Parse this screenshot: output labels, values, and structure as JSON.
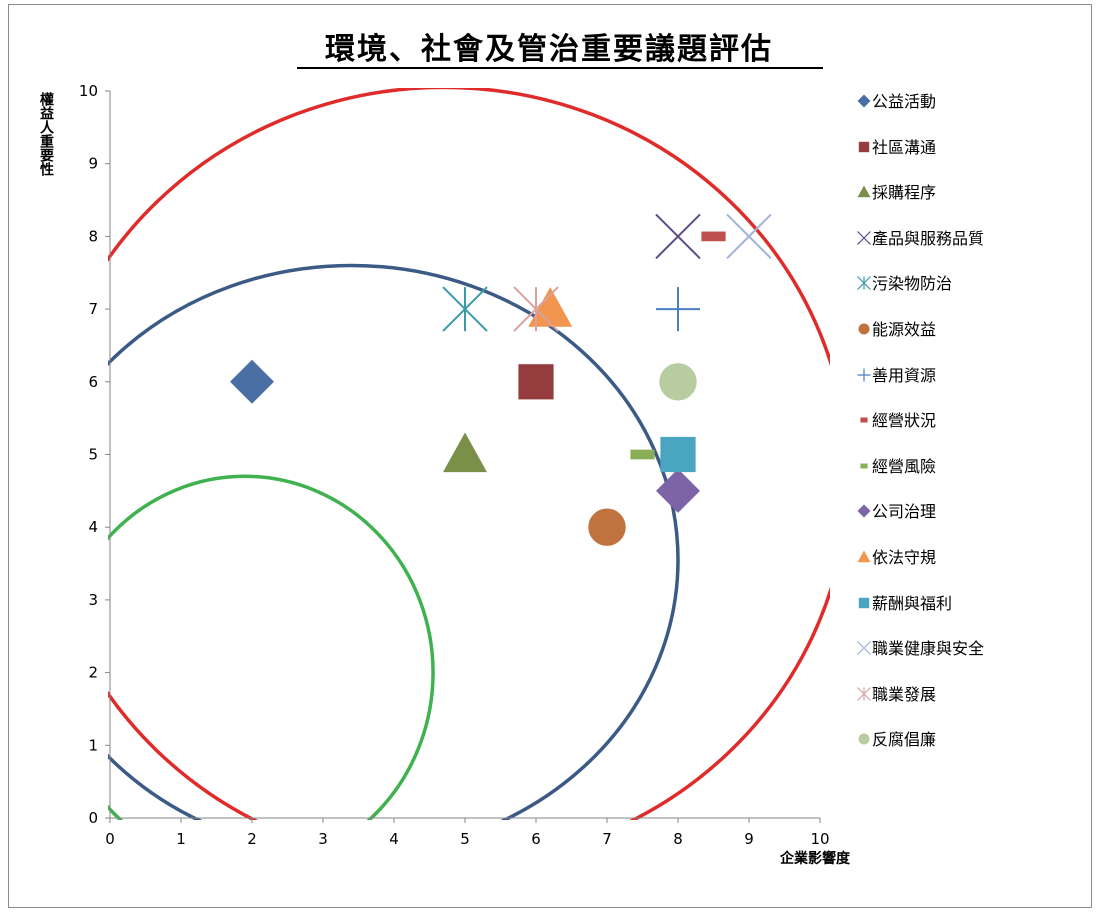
{
  "chart_data": {
    "type": "scatter",
    "title": "環境、社會及管治重要議題評估",
    "xlabel": "企業影響度",
    "ylabel": "權益人重要性",
    "xlim": [
      0,
      10
    ],
    "ylim": [
      0,
      10
    ],
    "xticks": [
      "0",
      "1",
      "2",
      "3",
      "4",
      "5",
      "6",
      "7",
      "8",
      "9",
      "10"
    ],
    "yticks": [
      "0",
      "1",
      "2",
      "3",
      "4",
      "5",
      "6",
      "7",
      "8",
      "9",
      "10"
    ],
    "grid": false,
    "legend_position": "right",
    "series": [
      {
        "name": "公益活動",
        "x": 2,
        "y": 6,
        "marker": "diamond",
        "color": "#4a6fa5"
      },
      {
        "name": "社區溝通",
        "x": 6,
        "y": 6,
        "marker": "square",
        "color": "#953d3e"
      },
      {
        "name": "採購程序",
        "x": 5,
        "y": 5,
        "marker": "triangle",
        "color": "#7a9049"
      },
      {
        "name": "產品與服務品質",
        "x": 8,
        "y": 8,
        "marker": "x",
        "color": "#5d4a8a"
      },
      {
        "name": "污染物防治",
        "x": 5,
        "y": 7,
        "marker": "asterisk",
        "color": "#3b9aaa"
      },
      {
        "name": "能源效益",
        "x": 7,
        "y": 4,
        "marker": "circle",
        "color": "#c0733e"
      },
      {
        "name": "善用資源",
        "x": 8,
        "y": 7,
        "marker": "plus",
        "color": "#4b7ec3"
      },
      {
        "name": "經營狀況",
        "x": 8.5,
        "y": 8,
        "marker": "dash",
        "color": "#c0504d"
      },
      {
        "name": "經營風險",
        "x": 7.5,
        "y": 5,
        "marker": "dash",
        "color": "#8aae56"
      },
      {
        "name": "公司治理",
        "x": 8,
        "y": 4.5,
        "marker": "diamond",
        "color": "#7c64a6"
      },
      {
        "name": "依法守規",
        "x": 6.2,
        "y": 7,
        "marker": "triangle",
        "color": "#f2954f"
      },
      {
        "name": "薪酬與福利",
        "x": 8,
        "y": 5,
        "marker": "square",
        "color": "#4aa5c0"
      },
      {
        "name": "職業健康與安全",
        "x": 9,
        "y": 8,
        "marker": "x",
        "color": "#9fb3dc"
      },
      {
        "name": "職業發展",
        "x": 6,
        "y": 7,
        "marker": "asterisk",
        "color": "#d9a1a0"
      },
      {
        "name": "反腐倡廉",
        "x": 8,
        "y": 6,
        "marker": "circle",
        "color": "#b7cca0"
      }
    ],
    "arcs": [
      {
        "center_x": 1.9,
        "center_y": 2,
        "radius_x": 2.65,
        "radius_y": 2.7,
        "color": "#3fb24f"
      },
      {
        "center_x": 3.4,
        "center_y": 3.55,
        "radius_x": 4.6,
        "radius_y": 4.05,
        "color": "#3c5a86"
      },
      {
        "center_x": 4.7,
        "center_y": 4.7,
        "radius_x": 5.7,
        "radius_y": 5.35,
        "color": "#e02b2b"
      }
    ]
  }
}
